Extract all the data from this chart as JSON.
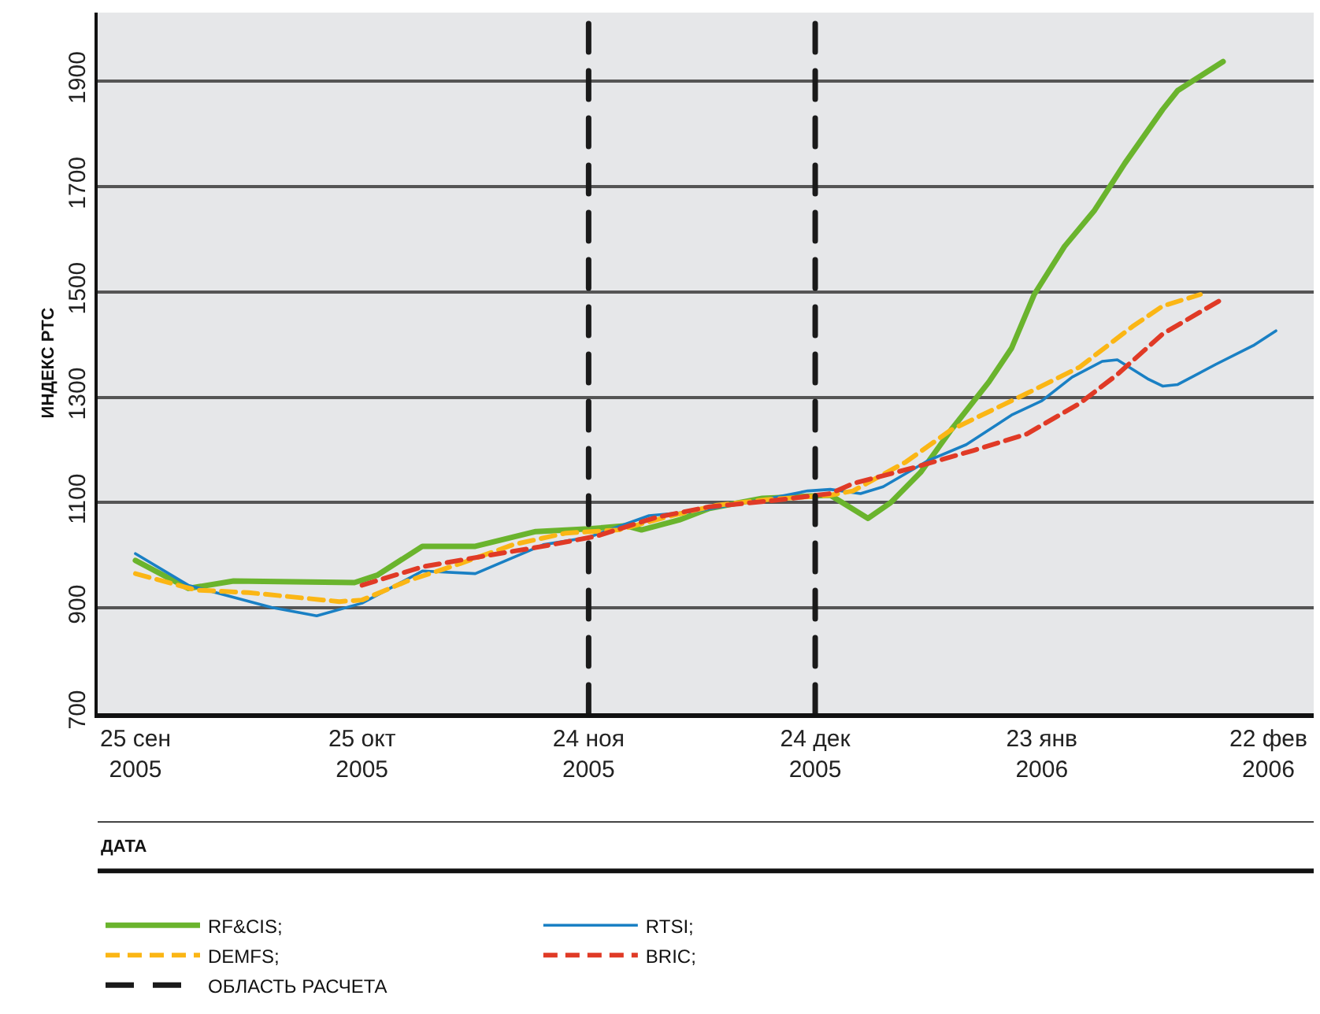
{
  "chart_data": {
    "type": "line",
    "xlabel": "ДАТА",
    "ylabel": "ИНДЕКС РТС",
    "xlim": [
      "2005-09-20",
      "2006-02-28"
    ],
    "xticks": [
      {
        "value": "2005-09-25",
        "label": "25 сен\n2005"
      },
      {
        "value": "2005-10-25",
        "label": "25 окт\n2005"
      },
      {
        "value": "2005-11-24",
        "label": "24 ноя\n2005"
      },
      {
        "value": "2005-12-24",
        "label": "24 дек\n2005"
      },
      {
        "value": "2006-01-23",
        "label": "23 янв\n2006"
      },
      {
        "value": "2006-02-22",
        "label": "22 фев\n2006"
      }
    ],
    "ylim": [
      700,
      2030
    ],
    "yticks": [
      700,
      900,
      1100,
      1300,
      1500,
      1700,
      1900
    ],
    "grid": "y",
    "legend": "bottom",
    "marker": "none",
    "series": [
      {
        "name": "RF&CIS;",
        "color": "#6ab42d",
        "line_style": "solid",
        "x": [
          "2005-09-25",
          "2005-10-02",
          "2005-10-08",
          "2005-10-24",
          "2005-10-27",
          "2005-11-02",
          "2005-11-09",
          "2005-11-17",
          "2005-11-24",
          "2005-11-29",
          "2005-12-01",
          "2005-12-06",
          "2005-12-10",
          "2005-12-17",
          "2005-12-26",
          "2005-12-31",
          "2006-01-03",
          "2006-01-07",
          "2006-01-11",
          "2006-01-16",
          "2006-01-19",
          "2006-01-22",
          "2006-01-26",
          "2006-01-30",
          "2006-02-03",
          "2006-02-08",
          "2006-02-10",
          "2006-02-16"
        ],
        "values": [
          990,
          937,
          951,
          948,
          962,
          1017,
          1017,
          1045,
          1050,
          1056,
          1048,
          1067,
          1089,
          1108,
          1114,
          1070,
          1100,
          1158,
          1238,
          1329,
          1393,
          1495,
          1586,
          1655,
          1744,
          1846,
          1882,
          1937
        ]
      },
      {
        "name": "RTSI;",
        "color": "#1a80c4",
        "line_style": "solid",
        "x": [
          "2005-09-25",
          "2005-10-02",
          "2005-10-13",
          "2005-10-19",
          "2005-10-25",
          "2005-11-02",
          "2005-11-09",
          "2005-11-18",
          "2005-11-24",
          "2005-12-02",
          "2005-12-08",
          "2005-12-18",
          "2005-12-23",
          "2005-12-26",
          "2005-12-30",
          "2006-01-02",
          "2006-01-08",
          "2006-01-13",
          "2006-01-19",
          "2006-01-23",
          "2006-01-27",
          "2006-01-31",
          "2006-02-02",
          "2006-02-06",
          "2006-02-08",
          "2006-02-10",
          "2006-02-15",
          "2006-02-20",
          "2006-02-23"
        ],
        "values": [
          1003,
          943,
          901,
          885,
          909,
          970,
          965,
          1020,
          1034,
          1075,
          1083,
          1108,
          1122,
          1125,
          1117,
          1130,
          1180,
          1210,
          1266,
          1293,
          1338,
          1368,
          1371,
          1335,
          1321,
          1324,
          1362,
          1398,
          1426
        ]
      },
      {
        "name": "DEMFS;",
        "color": "#fbb615",
        "line_style": "dashed",
        "x": [
          "2005-09-25",
          "2005-10-03",
          "2005-10-10",
          "2005-10-22",
          "2005-10-25",
          "2005-10-31",
          "2005-11-07",
          "2005-11-14",
          "2005-11-21",
          "2005-11-28",
          "2005-12-05",
          "2005-12-11",
          "2005-12-18",
          "2005-12-26",
          "2005-12-29",
          "2006-01-05",
          "2006-01-11",
          "2006-01-21",
          "2006-01-28",
          "2006-02-04",
          "2006-02-08",
          "2006-02-13"
        ],
        "values": [
          965,
          934,
          929,
          912,
          915,
          951,
          984,
          1020,
          1042,
          1048,
          1075,
          1095,
          1106,
          1114,
          1122,
          1177,
          1238,
          1307,
          1357,
          1434,
          1473,
          1495
        ]
      },
      {
        "name": "BRIC;",
        "color": "#e03a26",
        "line_style": "dashed",
        "x": [
          "2005-10-25",
          "2005-11-02",
          "2005-11-10",
          "2005-11-18",
          "2005-11-25",
          "2005-12-03",
          "2005-12-10",
          "2005-12-18",
          "2005-12-26",
          "2005-12-29",
          "2006-01-06",
          "2006-01-14",
          "2006-01-21",
          "2006-01-28",
          "2006-02-02",
          "2006-02-08",
          "2006-02-13",
          "2006-02-16"
        ],
        "values": [
          943,
          978,
          998,
          1017,
          1036,
          1072,
          1092,
          1103,
          1117,
          1136,
          1166,
          1199,
          1230,
          1288,
          1343,
          1420,
          1462,
          1487
        ]
      }
    ],
    "ref_lines": [
      {
        "axis": "x",
        "value": "2005-11-24",
        "label": "ОБЛАСТЬ РАСЧЕТА",
        "color": "#1a1a1a",
        "line_style": "dashed"
      },
      {
        "axis": "x",
        "value": "2005-12-24",
        "color": "#1a1a1a",
        "line_style": "dashed"
      }
    ]
  }
}
